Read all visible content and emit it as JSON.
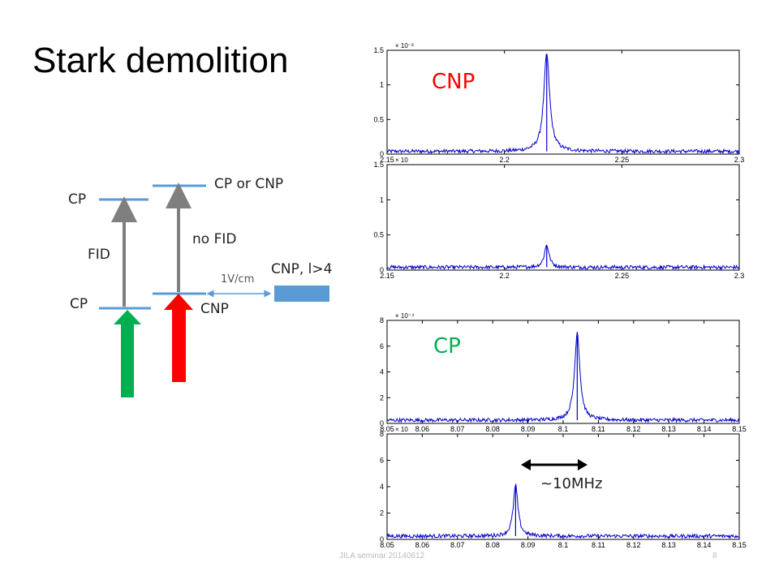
{
  "slide": {
    "title": "Stark demolition",
    "footer": "JILA seminar 20140612",
    "page_number": "8"
  },
  "diagram": {
    "cp_upper": "CP",
    "cp_or_cnp": "CP or CNP",
    "fid": "FID",
    "no_fid": "no FID",
    "cp_lower": "CP",
    "cnp_lower": "CNP",
    "field": "1V/cm",
    "cnp_l": "CNP, l>4",
    "colors": {
      "level": "#5b9bd5",
      "grey_arrow": "#7f7f7f",
      "green_arrow": "#00b050",
      "red_arrow": "#ff0000",
      "block": "#5b9bd5"
    }
  },
  "annotations": {
    "cnp": "CNP",
    "cp": "CP",
    "width": "~10MHz",
    "cnp_color": "#ff0000",
    "cp_color": "#00b050"
  },
  "chart_data": [
    {
      "type": "line",
      "name": "CNP panel top",
      "xlim": [
        2.15,
        2.3
      ],
      "ylim": [
        0,
        1.5
      ],
      "scale_label": "× 10⁻³",
      "xticks": [
        2.15,
        2.2,
        2.25,
        2.3
      ],
      "xtick_labels": [
        "2.15",
        "2.2",
        "2.25",
        "2.3"
      ],
      "yticks": [
        0,
        0.5,
        1,
        1.5
      ],
      "ytick_labels": [
        "0",
        "0.5",
        "1",
        "1.5"
      ],
      "series": [
        {
          "peak_x": 2.218,
          "peak_y": 1.45,
          "baseline": 0.04,
          "width": 0.0015,
          "color": "#0000cc"
        }
      ]
    },
    {
      "type": "line",
      "name": "CNP panel bottom",
      "xlim": [
        2.15,
        2.3
      ],
      "ylim": [
        0,
        1.5
      ],
      "scale_label": "× 10",
      "xticks": [
        2.15,
        2.2,
        2.25,
        2.3
      ],
      "xtick_labels": [
        "2.15",
        "2.2",
        "2.25",
        "2.3"
      ],
      "yticks": [
        0,
        0.5,
        1,
        1.5
      ],
      "ytick_labels": [
        "0",
        "0.5",
        "1",
        "1.5"
      ],
      "series": [
        {
          "peak_x": 2.218,
          "peak_y": 0.36,
          "baseline": 0.04,
          "width": 0.0012,
          "color": "#0000cc"
        }
      ]
    },
    {
      "type": "line",
      "name": "CP panel top",
      "xlim": [
        8.05,
        8.15
      ],
      "ylim": [
        0,
        8
      ],
      "scale_label": "× 10⁻⁴",
      "xticks": [
        8.05,
        8.06,
        8.07,
        8.08,
        8.09,
        8.1,
        8.11,
        8.12,
        8.13,
        8.14,
        8.15
      ],
      "xtick_labels": [
        "8.05",
        "8.06",
        "8.07",
        "8.08",
        "8.09",
        "8.1",
        "8.11",
        "8.12",
        "8.13",
        "8.14",
        "8.15"
      ],
      "yticks": [
        0,
        2,
        4,
        6,
        8
      ],
      "ytick_labels": [
        "0",
        "2",
        "4",
        "6",
        "8"
      ],
      "series": [
        {
          "peak_x": 8.104,
          "peak_y": 7.1,
          "baseline": 0.25,
          "width": 0.0009,
          "color": "#0000cc"
        }
      ]
    },
    {
      "type": "line",
      "name": "CP panel bottom",
      "xlim": [
        8.05,
        8.15
      ],
      "ylim": [
        0,
        8
      ],
      "scale_label": "× 10",
      "xticks": [
        8.05,
        8.06,
        8.07,
        8.08,
        8.09,
        8.1,
        8.11,
        8.12,
        8.13,
        8.14,
        8.15
      ],
      "xtick_labels": [
        "8.05",
        "8.06",
        "8.07",
        "8.08",
        "8.09",
        "8.1",
        "8.11",
        "8.12",
        "8.13",
        "8.14",
        "8.15"
      ],
      "yticks": [
        0,
        2,
        4,
        6,
        8
      ],
      "ytick_labels": [
        "0",
        "2",
        "4",
        "6",
        "8"
      ],
      "series": [
        {
          "peak_x": 8.0865,
          "peak_y": 4.1,
          "baseline": 0.25,
          "width": 0.0008,
          "color": "#0000cc"
        }
      ]
    }
  ]
}
